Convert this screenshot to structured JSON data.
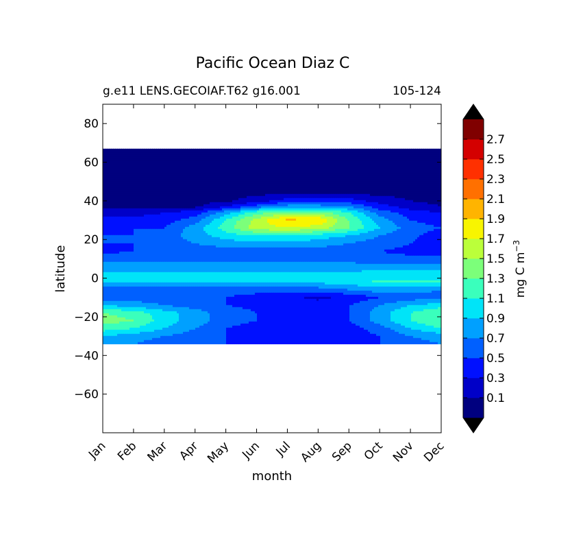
{
  "chart_data": {
    "type": "heatmap",
    "title": "Pacific Ocean Diaz C",
    "subtitle_left": "g.e11 LENS.GECOIAF.T62 g16.001",
    "subtitle_right": "105-124",
    "xlabel": "month",
    "ylabel": "latitude",
    "x_categories": [
      "Jan",
      "Feb",
      "Mar",
      "Apr",
      "May",
      "Jun",
      "Jul",
      "Aug",
      "Sep",
      "Oct",
      "Nov",
      "Dec"
    ],
    "y_ticks": [
      80,
      60,
      40,
      20,
      0,
      -20,
      -40,
      -60
    ],
    "ylim": [
      -80,
      90
    ],
    "data_lat_range": [
      -34,
      67
    ],
    "colorbar": {
      "label": "mg C m",
      "label_exponent": "−3",
      "tick_labels": [
        "0.1",
        "0.3",
        "0.5",
        "0.7",
        "0.9",
        "1.1",
        "1.3",
        "1.5",
        "1.7",
        "1.9",
        "2.1",
        "2.3",
        "2.5",
        "2.7"
      ],
      "levels": [
        -0.1,
        0.1,
        0.3,
        0.5,
        0.7,
        0.9,
        1.1,
        1.3,
        1.5,
        1.7,
        1.9,
        2.1,
        2.3,
        2.5,
        2.7,
        2.9
      ],
      "colors": [
        "#00007f",
        "#0000c8",
        "#0010ff",
        "#0060ff",
        "#00a0ff",
        "#00e4f8",
        "#3affbc",
        "#7cff7a",
        "#bbff3a",
        "#f8f500",
        "#ffb400",
        "#ff7000",
        "#ff3000",
        "#d40000",
        "#800000"
      ],
      "extend_low_color": "#000000",
      "extend_high_color": "#000000"
    },
    "latitudes": [
      67,
      44,
      40,
      37,
      34,
      30,
      26,
      22,
      18,
      14,
      10,
      6,
      2,
      -2,
      -6,
      -10,
      -14,
      -18,
      -22,
      -26,
      -30,
      -34
    ],
    "values": [
      [
        0.05,
        0.05,
        0.05,
        0.05,
        0.05,
        0.05,
        0.05,
        0.05,
        0.05,
        0.05,
        0.05,
        0.05
      ],
      [
        0.05,
        0.05,
        0.05,
        0.05,
        0.05,
        0.05,
        0.05,
        0.05,
        0.05,
        0.05,
        0.05,
        0.05
      ],
      [
        0.05,
        0.05,
        0.05,
        0.05,
        0.05,
        0.2,
        0.4,
        0.4,
        0.4,
        0.2,
        0.1,
        0.05
      ],
      [
        0.05,
        0.05,
        0.05,
        0.05,
        0.3,
        0.6,
        0.8,
        0.8,
        0.7,
        0.4,
        0.2,
        0.1
      ],
      [
        0.2,
        0.2,
        0.3,
        0.4,
        0.8,
        1.2,
        1.4,
        1.4,
        1.1,
        0.6,
        0.4,
        0.3
      ],
      [
        0.4,
        0.4,
        0.4,
        0.6,
        1.1,
        1.6,
        1.95,
        1.9,
        1.3,
        0.8,
        0.5,
        0.4
      ],
      [
        0.4,
        0.5,
        0.5,
        0.8,
        1.2,
        1.6,
        1.7,
        1.6,
        1.3,
        0.9,
        0.6,
        0.5
      ],
      [
        0.5,
        0.5,
        0.6,
        0.8,
        1.0,
        1.1,
        1.1,
        1.0,
        0.9,
        0.7,
        0.55,
        0.4
      ],
      [
        0.5,
        0.5,
        0.6,
        0.7,
        0.8,
        0.85,
        0.85,
        0.8,
        0.7,
        0.6,
        0.5,
        0.4
      ],
      [
        0.45,
        0.5,
        0.55,
        0.6,
        0.6,
        0.62,
        0.62,
        0.6,
        0.55,
        0.5,
        0.45,
        0.4
      ],
      [
        0.6,
        0.6,
        0.6,
        0.65,
        0.65,
        0.65,
        0.65,
        0.6,
        0.6,
        0.55,
        0.55,
        0.55
      ],
      [
        0.8,
        0.8,
        0.8,
        0.8,
        0.8,
        0.8,
        0.8,
        0.8,
        0.8,
        0.8,
        0.8,
        0.8
      ],
      [
        0.95,
        0.95,
        0.95,
        0.95,
        0.95,
        0.95,
        0.95,
        0.95,
        0.95,
        1.0,
        1.0,
        1.0
      ],
      [
        0.9,
        0.9,
        0.9,
        0.9,
        0.9,
        0.9,
        0.9,
        0.95,
        1.0,
        1.15,
        1.15,
        1.15
      ],
      [
        0.6,
        0.6,
        0.6,
        0.6,
        0.6,
        0.6,
        0.6,
        0.6,
        0.7,
        0.8,
        0.8,
        0.7
      ],
      [
        0.6,
        0.6,
        0.6,
        0.5,
        0.5,
        0.4,
        0.35,
        0.25,
        0.35,
        0.5,
        0.6,
        0.6
      ],
      [
        0.9,
        0.8,
        0.7,
        0.6,
        0.5,
        0.45,
        0.4,
        0.4,
        0.5,
        0.7,
        0.9,
        1.0
      ],
      [
        1.3,
        1.2,
        1.0,
        0.8,
        0.6,
        0.5,
        0.4,
        0.4,
        0.5,
        0.8,
        1.1,
        1.3
      ],
      [
        1.4,
        1.3,
        1.0,
        0.8,
        0.6,
        0.5,
        0.4,
        0.4,
        0.5,
        0.8,
        1.1,
        1.3
      ],
      [
        1.2,
        1.1,
        0.9,
        0.7,
        0.5,
        0.4,
        0.35,
        0.35,
        0.4,
        0.6,
        0.9,
        1.1
      ],
      [
        0.9,
        0.8,
        0.7,
        0.6,
        0.5,
        0.4,
        0.35,
        0.35,
        0.4,
        0.5,
        0.7,
        0.8
      ],
      [
        0.7,
        0.7,
        0.6,
        0.5,
        0.5,
        0.4,
        0.35,
        0.35,
        0.4,
        0.5,
        0.6,
        0.7
      ]
    ]
  }
}
